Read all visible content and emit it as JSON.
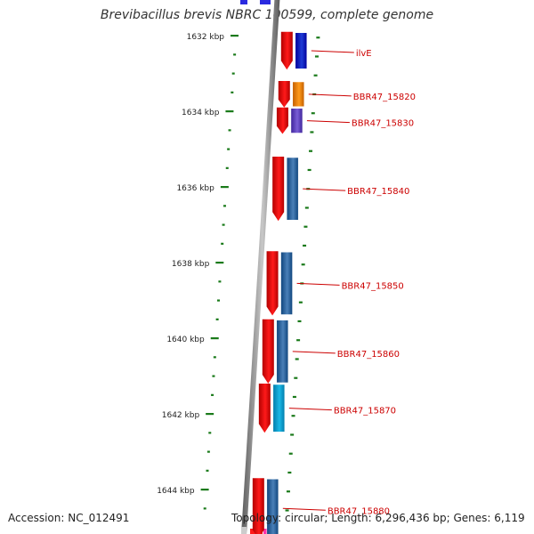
{
  "title": "Brevibacillus brevis NBRC 100599, complete genome",
  "scale_labels": [
    {
      "kbp": 1632,
      "label": "1632 kbp"
    },
    {
      "kbp": 1634,
      "label": "1634 kbp"
    },
    {
      "kbp": 1636,
      "label": "1636 kbp"
    },
    {
      "kbp": 1638,
      "label": "1638 kbp"
    },
    {
      "kbp": 1640,
      "label": "1640 kbp"
    },
    {
      "kbp": 1642,
      "label": "1642 kbp"
    },
    {
      "kbp": 1644,
      "label": "1644 kbp"
    }
  ],
  "genes": [
    {
      "name": "ilvE",
      "start_kbp": 1631.9,
      "end_kbp": 1632.9,
      "arrow_color": "#ff1a1a",
      "bar_color": "#1f3bd6"
    },
    {
      "name": "BBR47_15820",
      "start_kbp": 1633.2,
      "end_kbp": 1633.9,
      "arrow_color": "#ff1a1a",
      "bar_color": "#ff9a1a"
    },
    {
      "name": "BBR47_15830",
      "start_kbp": 1633.9,
      "end_kbp": 1634.6,
      "arrow_color": "#ff1a1a",
      "bar_color": "#7a5fd6"
    },
    {
      "name": "BBR47_15840",
      "start_kbp": 1635.2,
      "end_kbp": 1636.9,
      "arrow_color": "#ff1a1a",
      "bar_color": "#4a80b8"
    },
    {
      "name": "BBR47_15850",
      "start_kbp": 1637.7,
      "end_kbp": 1639.4,
      "arrow_color": "#ff1a1a",
      "bar_color": "#4a80b8"
    },
    {
      "name": "BBR47_15860",
      "start_kbp": 1639.5,
      "end_kbp": 1641.2,
      "arrow_color": "#ff1a1a",
      "bar_color": "#4a80b8"
    },
    {
      "name": "BBR47_15870",
      "start_kbp": 1641.2,
      "end_kbp": 1642.5,
      "arrow_color": "#ff1a1a",
      "bar_color": "#1ab8e6"
    },
    {
      "name": "BBR47_15880",
      "start_kbp": 1643.7,
      "end_kbp": 1645.3,
      "arrow_color": "#ff1a1a",
      "bar_color": "#4a80b8"
    }
  ],
  "accession": "Accession: NC_012491",
  "topology": "Topology: circular; Length: 6,296,436 bp; Genes: 6,119",
  "colors": {
    "backbone": "#888888",
    "tick": "#1a7a1a",
    "label_line": "#cc0000",
    "gene_label": "#cc0000"
  }
}
